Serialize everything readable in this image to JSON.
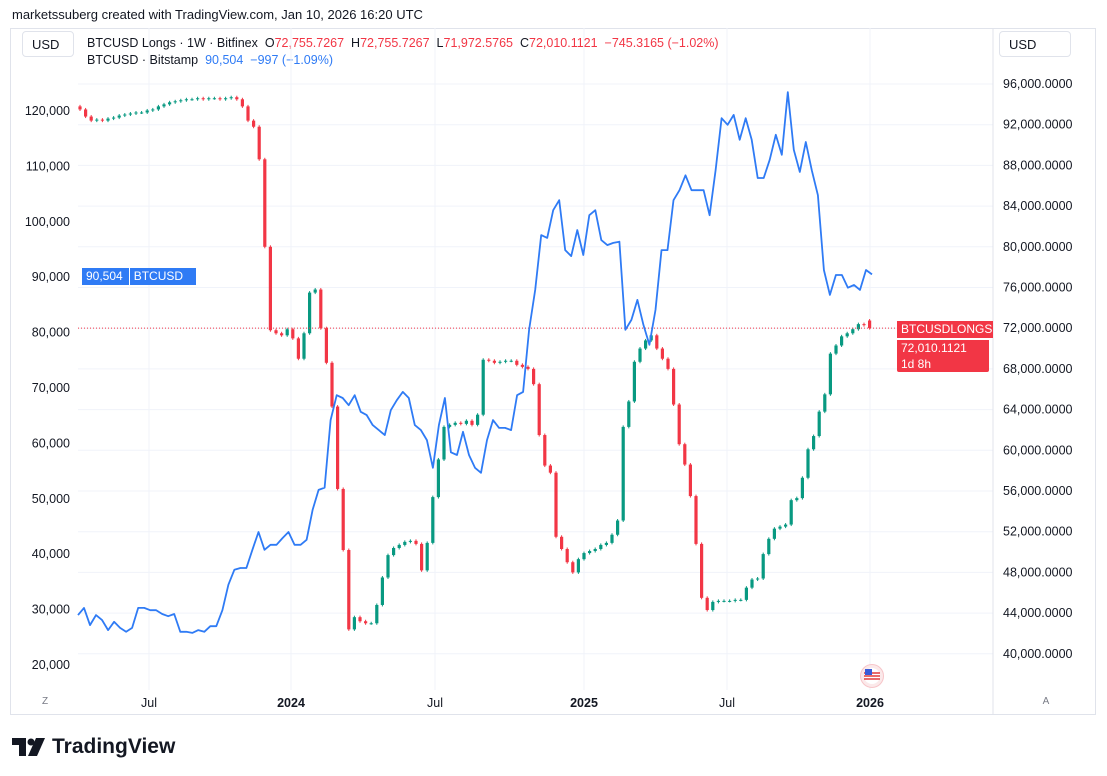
{
  "credit": "marketssuberg created with TradingView.com, Jan 10, 2026 16:20 UTC",
  "left_currency": "USD",
  "right_currency": "USD",
  "legend": {
    "main": {
      "symbol": "BTCUSD Longs · 1W · Bitfinex",
      "o_label": "O",
      "o": "72,755.7267",
      "h_label": "H",
      "h": "72,755.7267",
      "l_label": "L",
      "l": "71,972.5765",
      "c_label": "C",
      "c": "72,010.1121",
      "change": "−745.3165 (−1.02%)"
    },
    "compare": {
      "symbol": "BTCUSD · Bitstamp",
      "value": "90,504",
      "change": "−997 (−1.09%)"
    }
  },
  "labels": {
    "btcusd_value": "90,504",
    "btcusd_name": "BTCUSD",
    "longs_name": "BTCUSDLONGS",
    "longs_value": "72,010.1121",
    "longs_countdown": "1d 8h"
  },
  "bottom_left_button": "Z",
  "bottom_right_button": "A",
  "brand": "TradingView",
  "colors": {
    "up": "#089981",
    "down": "#f23645",
    "compare_line": "#2f7bf5",
    "grid": "#f0f3fa"
  },
  "icons": {
    "flag": "us-flag-icon",
    "logo": "tradingview-logo-icon"
  },
  "chart_data": {
    "type": "candlestick+line",
    "interval": "1W",
    "x_ticks": [
      "Jul",
      "2024",
      "Jul",
      "2025",
      "Jul",
      "2026"
    ],
    "left_axis": {
      "ticks": [
        "120,000",
        "110,000",
        "100,000",
        "90,000",
        "80,000",
        "70,000",
        "60,000",
        "50,000",
        "40,000",
        "30,000",
        "20,000"
      ],
      "range": [
        20000,
        120000
      ]
    },
    "right_axis": {
      "ticks": [
        "96,000.0000",
        "92,000.0000",
        "88,000.0000",
        "84,000.0000",
        "80,000.0000",
        "76,000.0000",
        "72,000.0000",
        "68,000.0000",
        "64,000.0000",
        "60,000.0000",
        "56,000.0000",
        "52,000.0000",
        "48,000.0000",
        "44,000.0000",
        "40,000.0000"
      ],
      "range": [
        40000,
        96000
      ]
    },
    "series": [
      {
        "name": "BTCUSD Longs",
        "axis": "right",
        "type": "candlestick",
        "first_open": 93800,
        "last_open": 72755.7267,
        "closes": [
          93500,
          92800,
          92400,
          92500,
          92400,
          92600,
          92700,
          92900,
          93000,
          93100,
          93200,
          93200,
          93400,
          93500,
          93800,
          94000,
          94200,
          94300,
          94400,
          94500,
          94500,
          94600,
          94500,
          94600,
          94600,
          94500,
          94600,
          94700,
          94500,
          93800,
          92400,
          91800,
          88600,
          80000,
          71800,
          71500,
          71300,
          71900,
          71000,
          69000,
          71500,
          75500,
          75800,
          72000,
          68600,
          64300,
          56200,
          50200,
          42400,
          43600,
          43200,
          43000,
          43000,
          44800,
          47500,
          49700,
          50400,
          50700,
          51000,
          51100,
          50800,
          48200,
          50900,
          55400,
          59100,
          62300,
          62500,
          62700,
          62600,
          62900,
          62500,
          63500,
          68900,
          68800,
          68600,
          68700,
          68800,
          68800,
          68400,
          68200,
          68000,
          66500,
          61500,
          58500,
          57800,
          51500,
          50300,
          49000,
          48000,
          49300,
          49900,
          50100,
          50300,
          50700,
          50900,
          51700,
          53100,
          62300,
          64800,
          68700,
          70000,
          70800,
          71300,
          70000,
          69000,
          68000,
          64500,
          60600,
          58600,
          55500,
          50800,
          45500,
          44300,
          45100,
          45200,
          45200,
          45200,
          45300,
          45300,
          46500,
          47300,
          47400,
          49800,
          51300,
          52300,
          52500,
          52700,
          55100,
          55300,
          57300,
          60100,
          61400,
          63800,
          65500,
          69500,
          70300,
          71200,
          71500,
          71900,
          72400,
          72300,
          72010.1121
        ]
      },
      {
        "name": "BTCUSD",
        "axis": "left",
        "type": "line",
        "values": [
          29000,
          30300,
          27200,
          29000,
          28100,
          26300,
          27800,
          26700,
          26000,
          26700,
          30300,
          30300,
          29900,
          29900,
          29200,
          28800,
          29200,
          26000,
          26000,
          25800,
          26300,
          26000,
          27000,
          27000,
          29900,
          34500,
          37200,
          37500,
          37500,
          40800,
          44000,
          40800,
          41700,
          41700,
          42900,
          44000,
          41700,
          41700,
          42600,
          48000,
          51600,
          52000,
          64200,
          68700,
          68200,
          66900,
          68700,
          65700,
          65100,
          63300,
          62400,
          61500,
          66000,
          67800,
          69300,
          68200,
          63300,
          62400,
          60600,
          55600,
          63300,
          68200,
          58400,
          57900,
          62100,
          57900,
          55600,
          54700,
          60600,
          64200,
          62800,
          62800,
          62400,
          68700,
          69300,
          80500,
          87700,
          97600,
          97100,
          102100,
          103900,
          94900,
          93800,
          98500,
          94000,
          101200,
          102100,
          96700,
          95800,
          96200,
          96400,
          80500,
          82300,
          85900,
          81400,
          77800,
          84100,
          94900,
          94900,
          103900,
          105700,
          108400,
          105700,
          105700,
          105700,
          101200,
          109300,
          118700,
          117500,
          119300,
          114800,
          118700,
          114800,
          107900,
          107900,
          111200,
          115700,
          112100,
          123400,
          113000,
          109000,
          114400,
          109300,
          104800,
          91300,
          86800,
          90400,
          90400,
          88100,
          88600,
          87700,
          91300,
          90504
        ]
      }
    ]
  }
}
